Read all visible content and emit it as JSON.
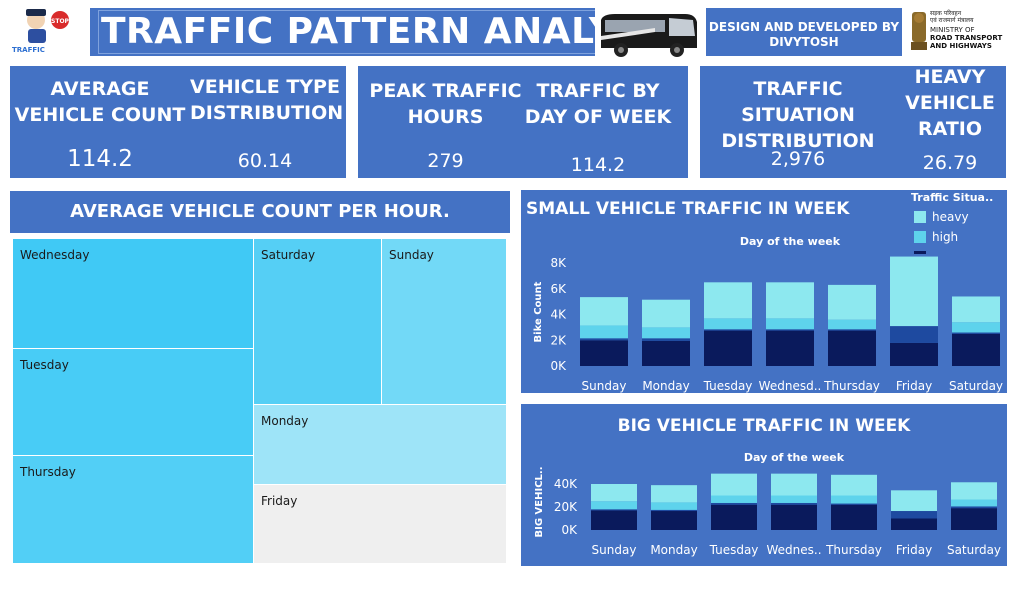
{
  "header": {
    "title": "TRAFFIC PATTERN ANALYSIS",
    "designer_line1": "DESIGN AND DEVELOPED BY",
    "designer_line2": "DIVYTOSH",
    "logo_left_text": "TRAFFIC",
    "logo_left_stop": "STOP",
    "ministry_line1": "सड़क परिवहन",
    "ministry_line2": "एवं राजमार्ग मंत्रालय",
    "ministry_line3": "MINISTRY OF",
    "ministry_line4": "ROAD TRANSPORT",
    "ministry_line5": "AND HIGHWAYS"
  },
  "kpis": [
    {
      "label": "AVERAGE VEHICLE COUNT",
      "value": "114.2"
    },
    {
      "label": "VEHICLE TYPE DISTRIBUTION",
      "value": "60.14"
    },
    {
      "label": "PEAK TRAFFIC HOURS",
      "value": "279"
    },
    {
      "label": "TRAFFIC BY DAY OF WEEK",
      "value": "114.2"
    },
    {
      "label": "TRAFFIC SITUATION DISTRIBUTION",
      "value": "2,976"
    },
    {
      "label": "HEAVY VEHICLE RATIO",
      "value": "26.79"
    }
  ],
  "treemap": {
    "title": "AVERAGE VEHICLE COUNT PER HOUR.",
    "cells": [
      "Wednesday",
      "Tuesday",
      "Thursday",
      "Saturday",
      "Sunday",
      "Monday",
      "Friday"
    ]
  },
  "colors": {
    "panel_blue": "#4472c4",
    "heavy": "#8de8ef",
    "high": "#5ed3ec",
    "normal": "#1e4aa0",
    "low": "#0a1a5c"
  },
  "chart_data": [
    {
      "type": "bar",
      "title": "SMALL VEHICLE TRAFFIC IN WEEK",
      "subtitle": "Day of the week",
      "ylabel": "Bike Count",
      "xlabel": "",
      "legend_title": "Traffic Situa..",
      "legend": [
        "heavy",
        "high",
        ""
      ],
      "legend_placement": "top-right",
      "categories": [
        "Sunday",
        "Monday",
        "Tuesday",
        "Wednesd..",
        "Thursday",
        "Friday",
        "Saturday"
      ],
      "yticks": [
        "8K",
        "6K",
        "4K",
        "2K",
        "0K"
      ],
      "ylim": [
        0,
        8000
      ],
      "stacked": true,
      "series": [
        {
          "key": "low",
          "values": [
            2000,
            1950,
            2750,
            2750,
            2750,
            1800,
            2500
          ]
        },
        {
          "key": "normal",
          "values": [
            150,
            200,
            100,
            100,
            100,
            1300,
            100
          ]
        },
        {
          "key": "high",
          "values": [
            1000,
            850,
            850,
            850,
            750,
            0,
            800
          ]
        },
        {
          "key": "heavy",
          "values": [
            2200,
            2150,
            2800,
            2800,
            2700,
            5400,
            2000
          ]
        }
      ]
    },
    {
      "type": "bar",
      "title": "BIG VEHICLE TRAFFIC IN WEEK",
      "subtitle": "Day of the week",
      "ylabel": "BIG VEHICL..",
      "xlabel": "",
      "categories": [
        "Sunday",
        "Monday",
        "Tuesday",
        "Wednes..",
        "Thursday",
        "Friday",
        "Saturday"
      ],
      "yticks": [
        "40K",
        "20K",
        "0K"
      ],
      "ylim": [
        0,
        40000
      ],
      "stacked": true,
      "series": [
        {
          "key": "low",
          "values": [
            17000,
            16500,
            22000,
            22000,
            22000,
            10000,
            19000
          ]
        },
        {
          "key": "normal",
          "values": [
            1000,
            1000,
            1500,
            1500,
            1000,
            6500,
            1500
          ]
        },
        {
          "key": "high",
          "values": [
            7000,
            6500,
            6500,
            6500,
            7000,
            0,
            6000
          ]
        },
        {
          "key": "heavy",
          "values": [
            15000,
            15000,
            19000,
            19000,
            18000,
            18000,
            15000
          ]
        }
      ]
    }
  ]
}
